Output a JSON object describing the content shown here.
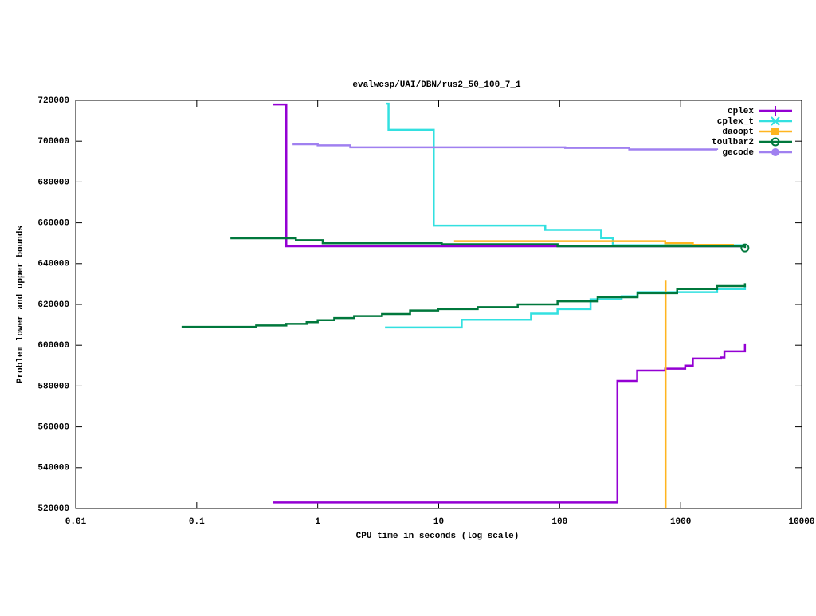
{
  "chart_data": {
    "type": "line",
    "title": "evalwcsp/UAI/DBN/rus2_50_100_7_1",
    "x_label": "CPU time in seconds (log scale)",
    "y_label": "Problem lower and upper bounds",
    "x_scale": "log",
    "style": "steps",
    "legend": "top-right",
    "xlim": [
      0.01,
      10000
    ],
    "xticks": [
      0.01,
      0.1,
      1,
      10,
      100,
      1000,
      10000
    ],
    "ylim": [
      520000,
      720000
    ],
    "yticks": [
      520000,
      540000,
      560000,
      580000,
      600000,
      620000,
      640000,
      660000,
      680000,
      700000,
      720000
    ],
    "series": [
      {
        "name": "cplex",
        "color": "#9400d3",
        "marker": "plus",
        "x": [
          0.43,
          0.55,
          3400
        ],
        "values": [
          718000,
          648500,
          648000
        ],
        "lower": {
          "x": [
            0.43,
            300,
            437,
            745,
            1090,
            1260,
            2150,
            2300,
            3400
          ],
          "values": [
            523000,
            582500,
            587600,
            588500,
            590000,
            593500,
            594000,
            597000,
            600500
          ]
        }
      },
      {
        "name": "cplex_t",
        "color": "#33e0e0",
        "marker": "cross",
        "x": [
          3.7,
          3.85,
          9.1,
          76,
          220,
          275,
          3400
        ],
        "values": [
          718400,
          705600,
          658600,
          656500,
          652500,
          649000,
          648500
        ],
        "lower": {
          "x": [
            3.6,
            15.5,
            58,
            96,
            180,
            325,
            440,
            2000,
            3400
          ],
          "values": [
            608700,
            612500,
            615500,
            617700,
            622500,
            624000,
            626000,
            627500,
            629000
          ]
        }
      },
      {
        "name": "daoopt",
        "color": "#ffb520",
        "marker": "square",
        "x": [
          13.4,
          745,
          1260,
          2700
        ],
        "values": [
          651000,
          650000,
          649200,
          649000
        ],
        "lower": {
          "x": [
            750,
            750
          ],
          "values": [
            632000,
            520000
          ]
        }
      },
      {
        "name": "toulbar2",
        "color": "#00783c",
        "marker": "circle",
        "end_marker": true,
        "x": [
          0.19,
          0.66,
          1.1,
          10.6,
          96,
          3400
        ],
        "values": [
          652400,
          651500,
          650000,
          649500,
          648500,
          647700
        ],
        "lower": {
          "x": [
            0.075,
            0.31,
            0.55,
            0.81,
            1.0,
            1.37,
            2.0,
            3.4,
            5.8,
            9.9,
            21,
            45,
            96,
            206,
            440,
            935,
            2000,
            3400
          ],
          "values": [
            609000,
            609700,
            610500,
            611300,
            612300,
            613300,
            614300,
            615300,
            617000,
            617700,
            618700,
            620000,
            621500,
            623500,
            625500,
            627500,
            629000,
            630400
          ]
        }
      },
      {
        "name": "gecode",
        "color": "#a080f0",
        "marker": "dot",
        "x": [
          0.62,
          1.0,
          1.86,
          111,
          376,
          2000
        ],
        "values": [
          698500,
          698000,
          697000,
          696700,
          696000,
          695800
        ]
      }
    ]
  }
}
